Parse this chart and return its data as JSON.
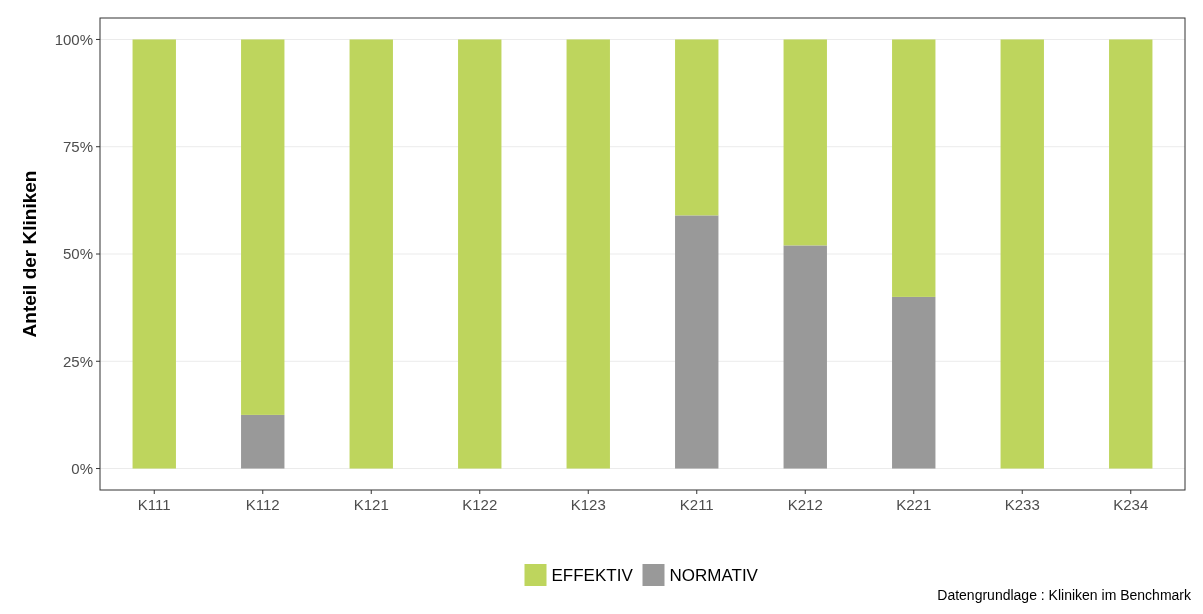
{
  "chart_data": {
    "type": "bar",
    "stacked": true,
    "ylabel": "Anteil der Kliniken",
    "categories": [
      "K111",
      "K112",
      "K121",
      "K122",
      "K123",
      "K211",
      "K212",
      "K221",
      "K233",
      "K234"
    ],
    "series": [
      {
        "name": "NORMATIV",
        "color": "#999999",
        "values": [
          0,
          12.5,
          0,
          0,
          0,
          59,
          52,
          40,
          0,
          0
        ]
      },
      {
        "name": "EFFEKTIV",
        "color": "#bed55d",
        "values": [
          100,
          87.5,
          100,
          100,
          100,
          41,
          48,
          60,
          100,
          100
        ]
      }
    ],
    "ylim": [
      -5,
      105
    ],
    "yticks": [
      {
        "value": 0,
        "label": "0%"
      },
      {
        "value": 25,
        "label": "25%"
      },
      {
        "value": 50,
        "label": "50%"
      },
      {
        "value": 75,
        "label": "75%"
      },
      {
        "value": 100,
        "label": "100%"
      }
    ],
    "grid": true,
    "legend": "bottom",
    "annotations": [
      "Datengrundlage : Kliniken im Benchmark"
    ]
  }
}
